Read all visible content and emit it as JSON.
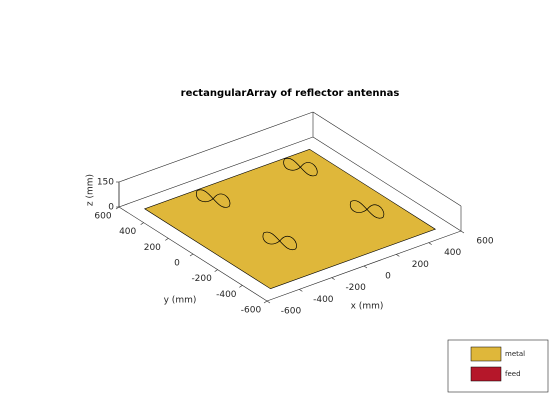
{
  "chart_data": {
    "type": "3d",
    "title": "rectangularArray of reflector antennas",
    "xlabel": "x (mm)",
    "ylabel": "y (mm)",
    "zlabel": "z (mm)",
    "xlim": [
      -600,
      600
    ],
    "ylim": [
      -600,
      600
    ],
    "zlim": [
      0,
      150
    ],
    "xticks": [
      -600,
      -400,
      -200,
      0,
      200,
      400,
      600
    ],
    "yticks": [
      -600,
      -400,
      -200,
      0,
      200,
      400,
      600
    ],
    "zticks": [
      0,
      150
    ],
    "series": [
      {
        "name": "metal",
        "color": "#dfb73a"
      },
      {
        "name": "feed",
        "color": "#b5172a"
      }
    ]
  }
}
